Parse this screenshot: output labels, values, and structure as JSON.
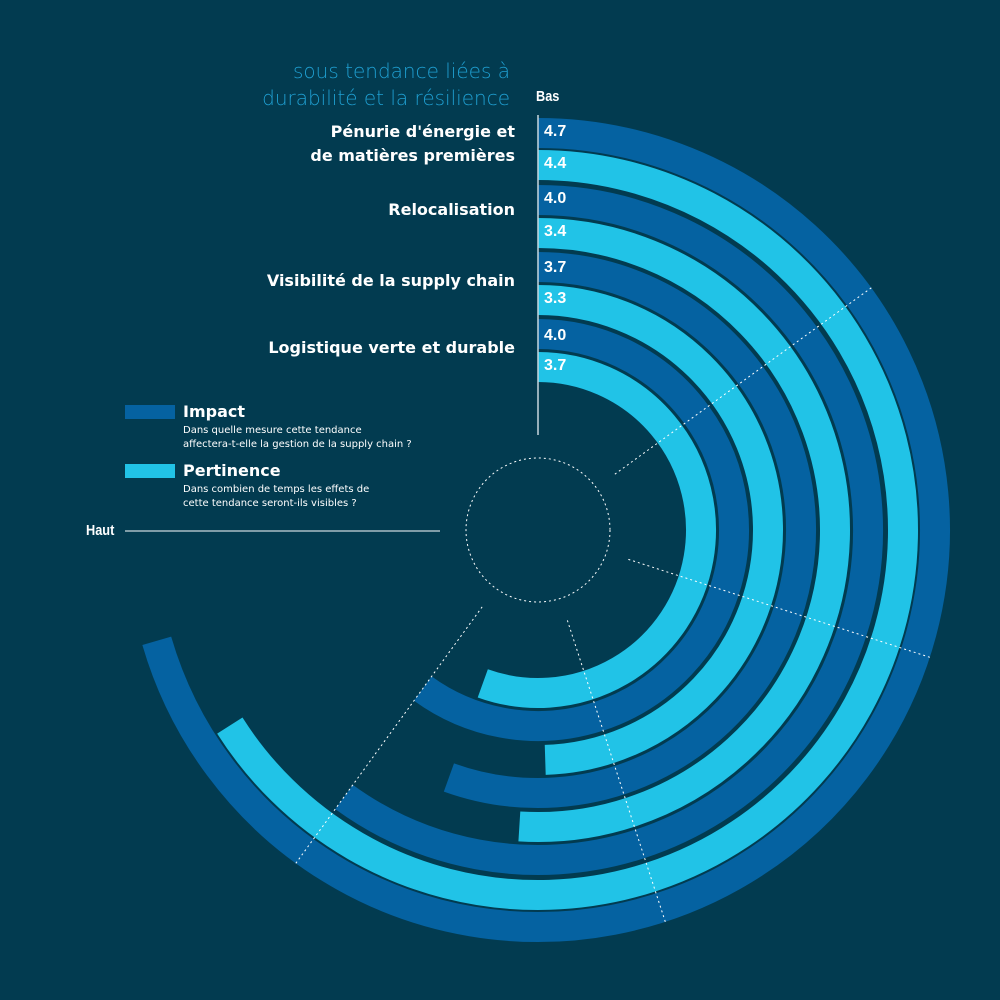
{
  "chart_data": {
    "type": "radial-bar",
    "title": "sous tendance liées à durabilité et la résilience",
    "axis_start_label": "Bas",
    "axis_end_label": "Haut",
    "scale": [
      0,
      5
    ],
    "sweep_degrees": 270,
    "grid_values": [
      1,
      2,
      3,
      4
    ],
    "categories": [
      "Pénurie d'énergie et de matières premières",
      "Relocalisation",
      "Visibilité de la supply chain",
      "Logistique verte et durable"
    ],
    "category_lines": [
      [
        "Pénurie d'énergie et",
        "de matières premières"
      ],
      [
        "Relocalisation"
      ],
      [
        "Visibilité de la supply chain"
      ],
      [
        "Logistique verte et durable"
      ]
    ],
    "series": [
      {
        "name": "Impact",
        "description": "Dans quelle mesure cette tendance affectera-t-elle la gestion de la supply chain ?",
        "color": "#0562a1",
        "values": [
          4.7,
          4.0,
          3.7,
          4.0
        ]
      },
      {
        "name": "Pertinence",
        "description": "Dans combien de temps les effets de cette tendance seront-ils visibles ?",
        "color": "#21c3e7",
        "values": [
          4.4,
          3.4,
          3.3,
          3.7
        ]
      }
    ],
    "legend": {
      "impact_desc_lines": [
        "Dans quelle mesure cette tendance",
        "affectera-t-elle la gestion de la supply chain ?"
      ],
      "pertinence_desc_lines": [
        "Dans combien de temps les effets de",
        "cette tendance seront-ils visibles ?"
      ]
    },
    "title_lines": [
      "sous tendance liées à",
      "durabilité et la résilience"
    ],
    "background": "#023b50"
  }
}
